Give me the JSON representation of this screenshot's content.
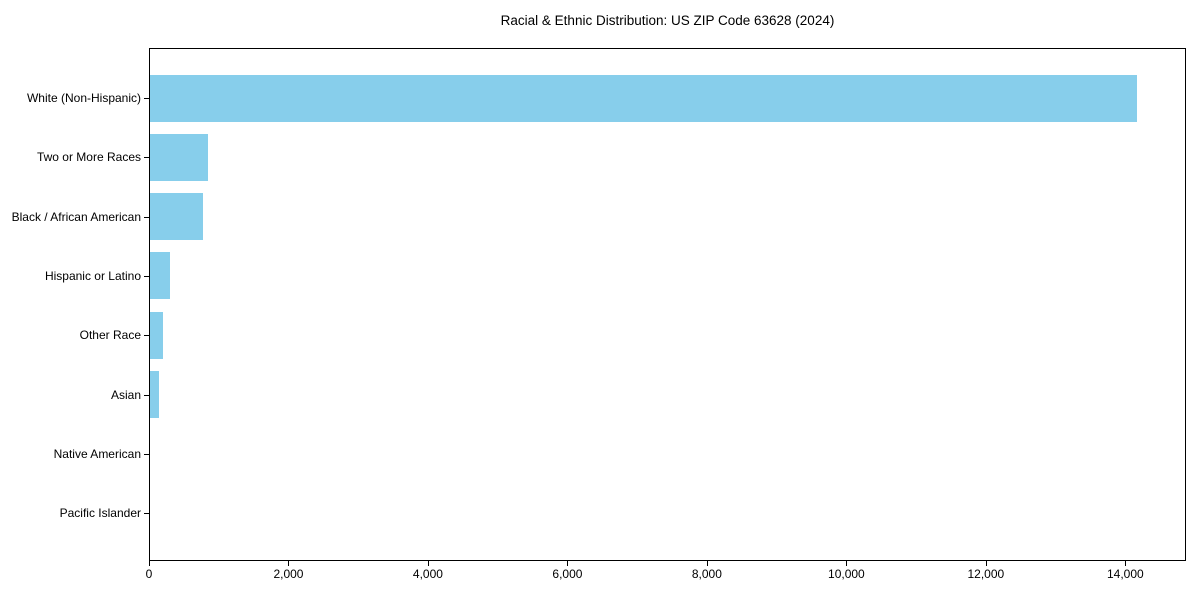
{
  "figure": {
    "background": "#FFFFFF"
  },
  "chart_data": {
    "type": "bar",
    "orientation": "horizontal",
    "title": "Racial & Ethnic Distribution: US ZIP Code 63628 (2024)",
    "categories": [
      "White (Non-Hispanic)",
      "Two or More Races",
      "Black / African American",
      "Hispanic or Latino",
      "Other Race",
      "Asian",
      "Native American",
      "Pacific Islander"
    ],
    "values": [
      14150,
      830,
      760,
      290,
      180,
      130,
      0,
      0
    ],
    "xlabel": "",
    "ylabel": "",
    "xlim": [
      0,
      14870
    ],
    "xticks": [
      0,
      2000,
      4000,
      6000,
      8000,
      10000,
      12000,
      14000
    ],
    "bar_color": "#87CEEB",
    "axis_color": "#000000",
    "text_color": "#000000",
    "grid": false,
    "legend_position": "none"
  }
}
